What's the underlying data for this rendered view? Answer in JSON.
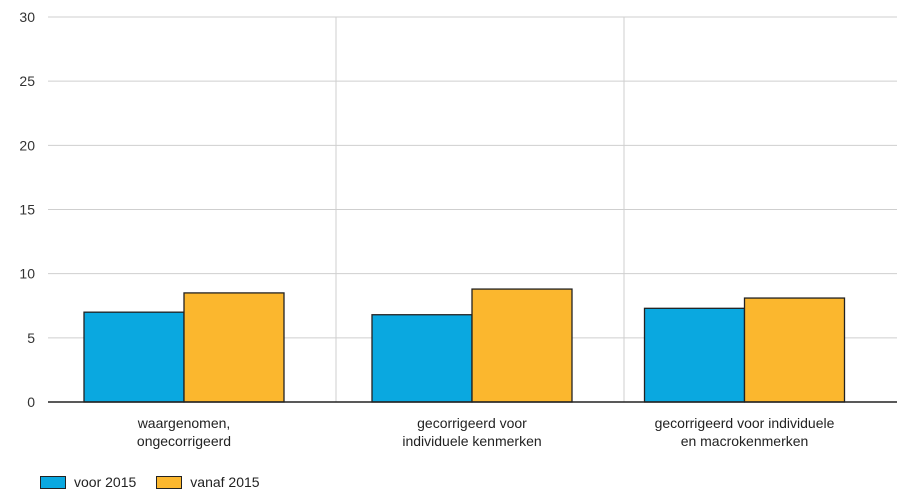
{
  "chart_data": {
    "type": "bar",
    "categories": [
      [
        "waargenomen,",
        "ongecorrigeerd"
      ],
      [
        "gecorrigeerd voor",
        "individuele kenmerken"
      ],
      [
        "gecorrigeerd voor individuele",
        "en macrokenmerken"
      ]
    ],
    "series": [
      {
        "name": "voor 2015",
        "values": [
          7.0,
          6.8,
          7.3
        ],
        "color": "#0aa8e0"
      },
      {
        "name": "vanaf 2015",
        "values": [
          8.5,
          8.8,
          8.1
        ],
        "color": "#fbb72e"
      }
    ],
    "ylim": [
      0,
      30
    ],
    "yticks": [
      0,
      5,
      10,
      15,
      20,
      25,
      30
    ],
    "grid": true,
    "legend": "bottom-left",
    "title": "",
    "xlabel": "",
    "ylabel": ""
  }
}
